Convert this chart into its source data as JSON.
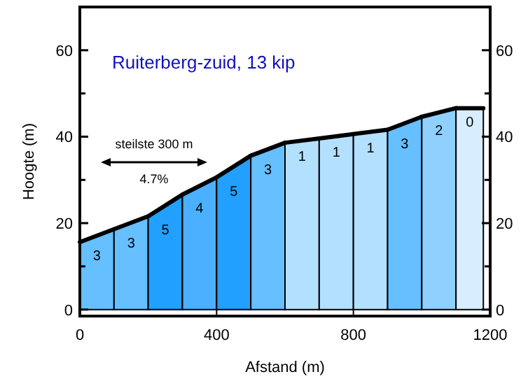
{
  "chart_data": {
    "type": "area",
    "title": "Ruiterberg-zuid, 13 kip",
    "xlabel": "Afstand (m)",
    "ylabel": "Hoogte (m)",
    "series": [
      {
        "color": "#66bfff",
        "x": [
          0,
          100
        ],
        "values": [
          15.6,
          18.6
        ]
      },
      {
        "color": "#66bfff",
        "x": [
          100,
          200
        ],
        "values": [
          18.6,
          21.6
        ]
      },
      {
        "color": "#22a0ff",
        "x": [
          200,
          300
        ],
        "values": [
          21.6,
          26.6
        ]
      },
      {
        "color": "#4ab0ff",
        "x": [
          300,
          400
        ],
        "values": [
          26.6,
          30.6
        ]
      },
      {
        "color": "#22a0ff",
        "x": [
          400,
          500
        ],
        "values": [
          30.6,
          35.6
        ]
      },
      {
        "color": "#66bfff",
        "x": [
          500,
          600
        ],
        "values": [
          35.6,
          38.6
        ]
      },
      {
        "color": "#b4e0ff",
        "x": [
          600,
          700
        ],
        "values": [
          38.6,
          39.6
        ]
      },
      {
        "color": "#b4e0ff",
        "x": [
          700,
          800
        ],
        "values": [
          39.6,
          40.6
        ]
      },
      {
        "color": "#b4e0ff",
        "x": [
          800,
          900
        ],
        "values": [
          40.6,
          41.6
        ]
      },
      {
        "color": "#66bfff",
        "x": [
          900,
          1000
        ],
        "values": [
          41.6,
          44.6
        ]
      },
      {
        "color": "#8fd0ff",
        "x": [
          1000,
          1100
        ],
        "values": [
          44.6,
          46.6
        ]
      },
      {
        "color": "#d8eefe",
        "x": [
          1100,
          1180
        ],
        "values": [
          46.6,
          46.6
        ]
      }
    ],
    "xlim": [
      0,
      1200
    ],
    "xticks": [
      0,
      400,
      800,
      1200
    ],
    "ylim": [
      -1.5,
      70
    ],
    "yticks": [
      0,
      {
        "value": 10,
        "label": null
      },
      20,
      {
        "value": 30,
        "label": null
      },
      40,
      {
        "value": 50,
        "label": null
      },
      60
    ],
    "y2lim": [
      -1.5,
      70
    ],
    "y2ticks": [
      0,
      {
        "value": 10,
        "label": null
      },
      20,
      {
        "value": 30,
        "label": null
      },
      40,
      {
        "value": 50,
        "label": null
      },
      60
    ],
    "annotations": [
      "steilste 300 m",
      "4.7%",
      "3",
      "3",
      "5",
      "4",
      "5",
      "3",
      "1",
      "1",
      "1",
      "3",
      "2",
      "0"
    ]
  }
}
